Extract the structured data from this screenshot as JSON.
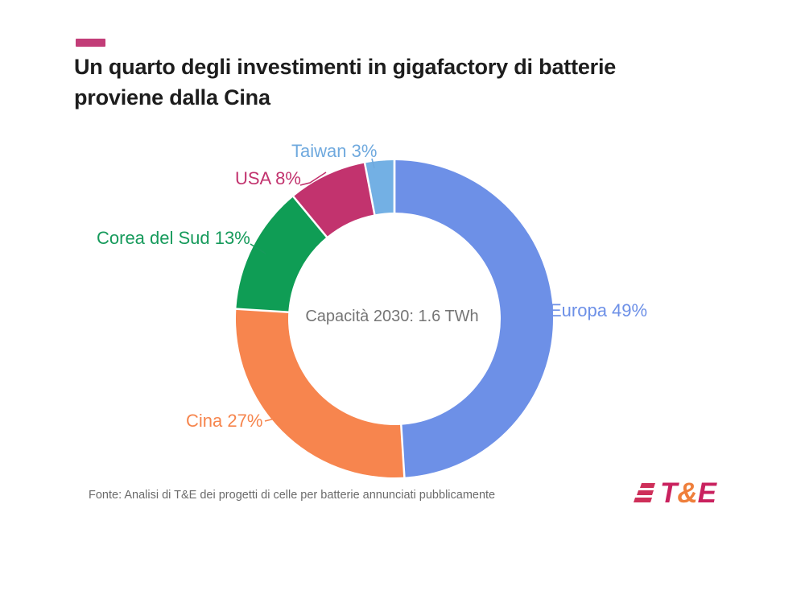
{
  "header": {
    "accent_color": "#c23d78",
    "title_line1": "Un quarto degli investimenti in gigafactory di batterie",
    "title_line2": "proviene dalla Cina"
  },
  "chart_data": {
    "type": "pie",
    "subtype": "donut",
    "title": "Un quarto degli investimenti in gigafactory di batterie proviene dalla Cina",
    "center_label": "Capacità 2030: 1.6 TWh",
    "units": "%",
    "start_angle_deg": 0,
    "direction": "clockwise",
    "inner_radius_ratio": 0.67,
    "legend_position": "outside-labels",
    "slices": [
      {
        "name": "Europa",
        "value": 49,
        "label": "Europa 49%",
        "color": "#6d90e7",
        "label_color": "#6d90e7"
      },
      {
        "name": "Cina",
        "value": 27,
        "label": "Cina 27%",
        "color": "#f7854e",
        "label_color": "#f6854d"
      },
      {
        "name": "Corea del Sud",
        "value": 13,
        "label": "Corea del Sud 13%",
        "color": "#0f9d55",
        "label_color": "#169a5b"
      },
      {
        "name": "USA",
        "value": 8,
        "label": "USA 8%",
        "color": "#c2336e",
        "label_color": "#c2336e"
      },
      {
        "name": "Taiwan",
        "value": 3,
        "label": "Taiwan 3%",
        "color": "#73b0e4",
        "label_color": "#6fa9de"
      }
    ]
  },
  "footer": {
    "source_text": "Fonte: Analisi di T&E dei progetti di celle per batterie annunciati pubblicamente",
    "logo": {
      "t": "T",
      "amp": "&",
      "e": "E",
      "letter_color": "#c9215e",
      "amp_color": "#ef7f3b",
      "mark_color": "#ce2f59"
    }
  }
}
